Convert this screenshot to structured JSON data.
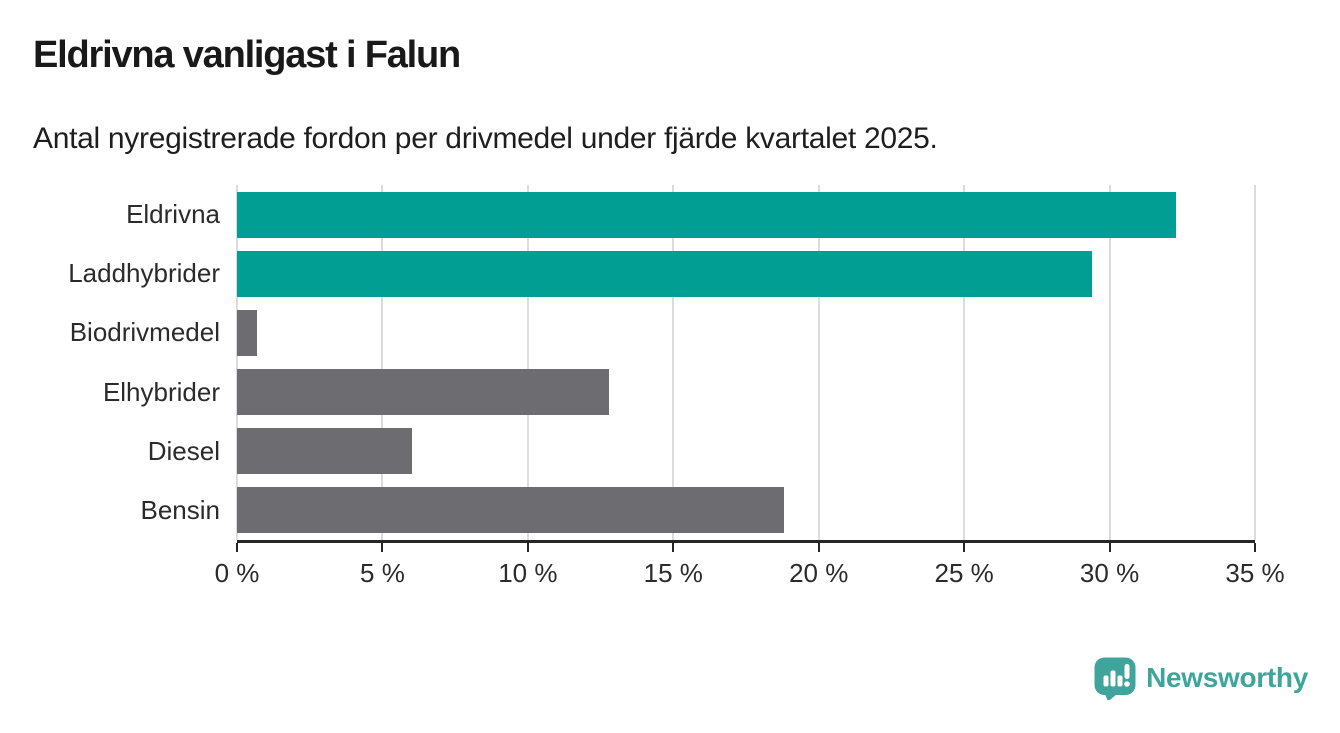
{
  "header": {
    "title": "Eldrivna vanligast i Falun",
    "subtitle": "Antal nyregistrerade fordon per drivmedel under fjärde kvartalet 2025."
  },
  "branding": {
    "name": "Newsworthy",
    "logo_icon": "speech-bubble-with-bar-chart-and-exclamation"
  },
  "colors": {
    "accent_teal": "#009E93",
    "muted_gray": "#6D6C71",
    "logo_teal": "#3FA49B",
    "gridline": "#DCDCDC",
    "axis": "#262626",
    "text_dark": "#1E1E1E"
  },
  "chart_data": {
    "type": "bar",
    "orientation": "horizontal",
    "title": "Eldrivna vanligast i Falun",
    "subtitle": "Antal nyregistrerade fordon per drivmedel under fjärde kvartalet 2025.",
    "categories": [
      "Eldrivna",
      "Laddhybrider",
      "Biodrivmedel",
      "Elhybrider",
      "Diesel",
      "Bensin"
    ],
    "values": [
      32.3,
      29.4,
      0.7,
      12.8,
      6.0,
      18.8
    ],
    "value_unit": "%",
    "highlighted": [
      true,
      true,
      false,
      false,
      false,
      false
    ],
    "xlabel": "",
    "ylabel": "",
    "xlim": [
      0,
      35
    ],
    "x_tick_values": [
      0,
      5,
      10,
      15,
      20,
      25,
      30,
      35
    ],
    "x_tick_labels": [
      "0 %",
      "5 %",
      "10 %",
      "15 %",
      "20 %",
      "25 %",
      "30 %",
      "35 %"
    ],
    "grid": "vertical",
    "legend": false
  }
}
